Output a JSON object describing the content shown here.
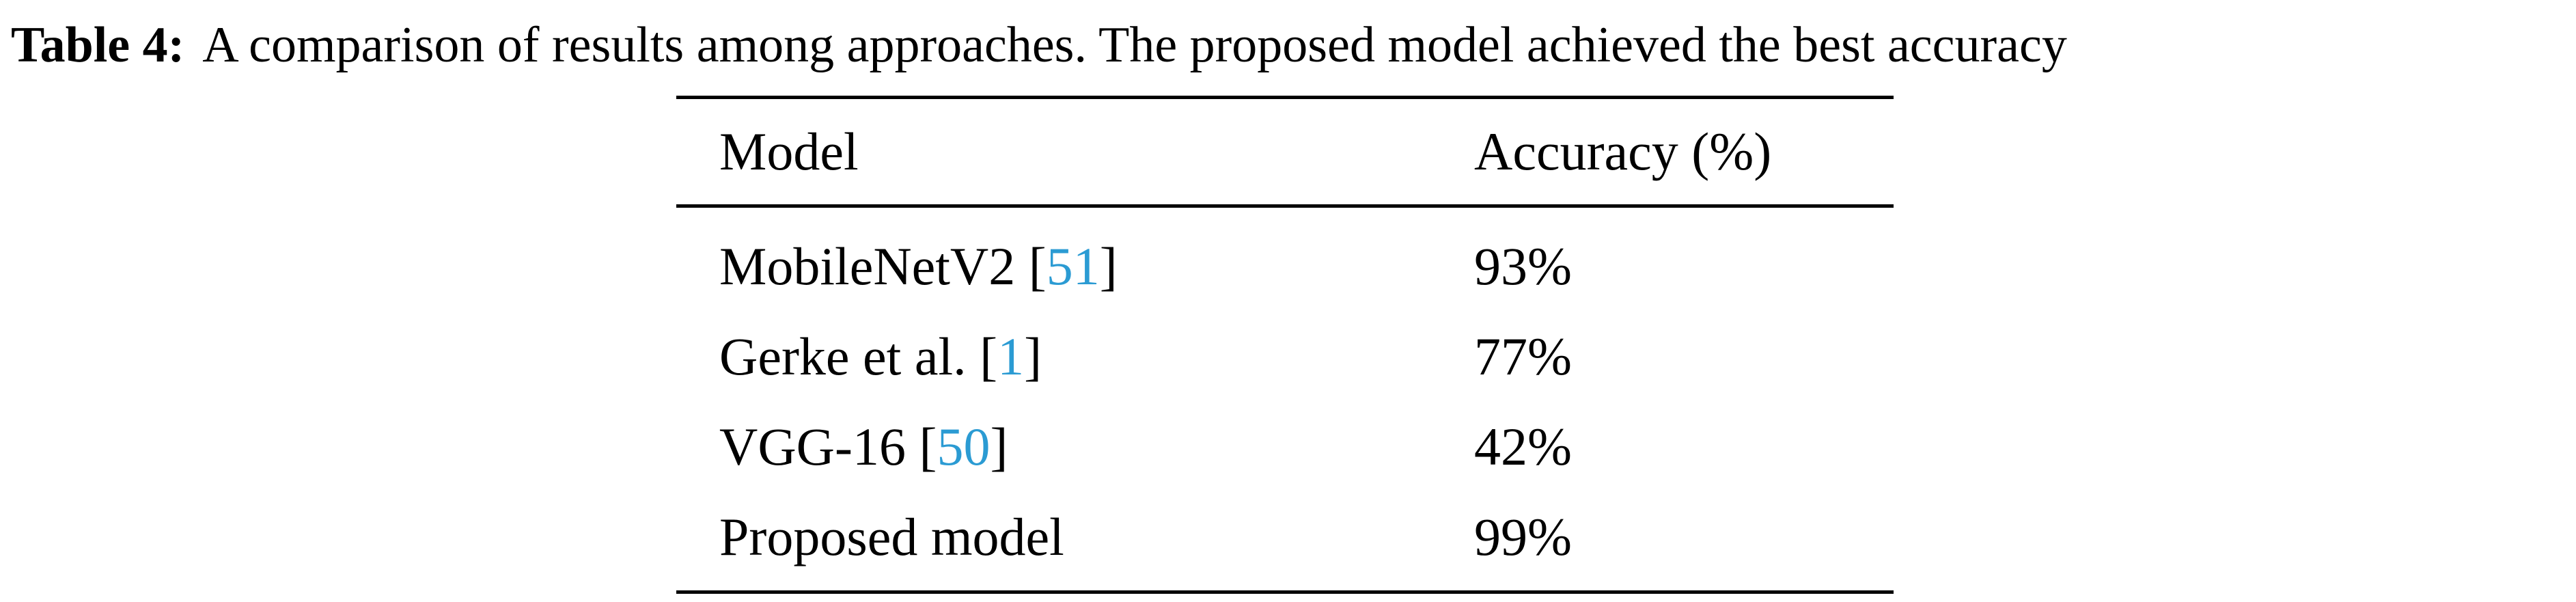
{
  "caption": {
    "label": "Table 4:",
    "text": "A comparison of results among approaches. The proposed model achieved the best accuracy"
  },
  "table": {
    "headers": [
      "Model",
      "Accuracy (%)"
    ],
    "rows": [
      {
        "model": "MobileNetV2",
        "ref": "51",
        "accuracy": "93%"
      },
      {
        "model": "Gerke et al.",
        "ref": "1",
        "accuracy": "77%"
      },
      {
        "model": "VGG-16",
        "ref": "50",
        "accuracy": "42%"
      },
      {
        "model": "Proposed model",
        "ref": "",
        "accuracy": "99%"
      }
    ]
  },
  "colors": {
    "citation_link": "#2b9bd3",
    "text": "#000000"
  }
}
